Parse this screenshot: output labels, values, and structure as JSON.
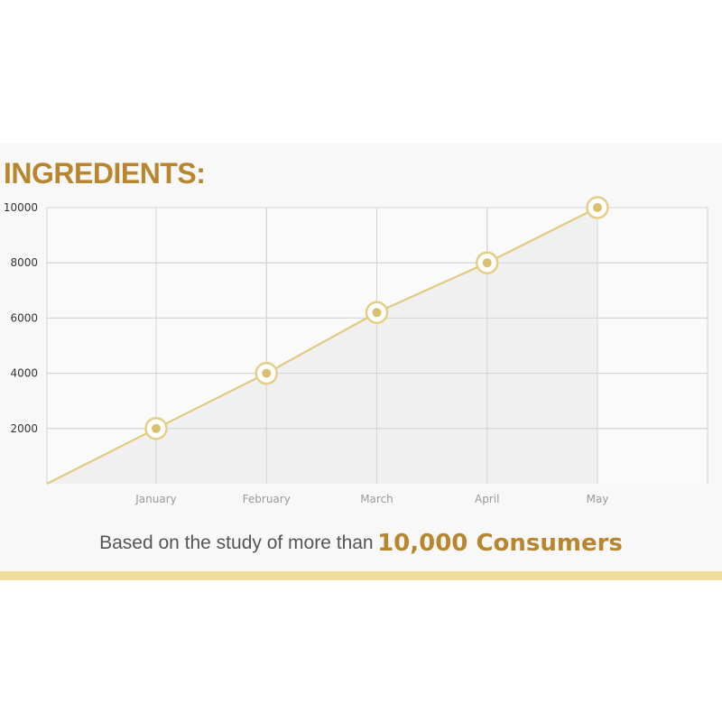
{
  "colors": {
    "accent": "#b8862e",
    "line": "#e2ca7f",
    "marker_ring": "#e5cf86",
    "marker_dot": "#d9c070",
    "grid": "#d4d4d4",
    "plot_fill": "#f0f0f0",
    "bottom_bar": "#f2dc9b"
  },
  "header": {
    "title": "INGREDIENTS:"
  },
  "footer": {
    "text": "Based on the study of more than",
    "highlight": "10,000 Consumers"
  },
  "chart_data": {
    "type": "line",
    "title": "",
    "xlabel": "",
    "ylabel": "",
    "categories": [
      "January",
      "February",
      "March",
      "April",
      "May"
    ],
    "series": [
      {
        "values": [
          2000,
          4000,
          6200,
          8000,
          10000
        ]
      }
    ],
    "origin_value": 0,
    "ylim": [
      0,
      10000
    ],
    "yticks": [
      "10000",
      "8000",
      "6000",
      "4000",
      "2000"
    ],
    "area_fill": true,
    "grid": true,
    "legend": "none"
  }
}
